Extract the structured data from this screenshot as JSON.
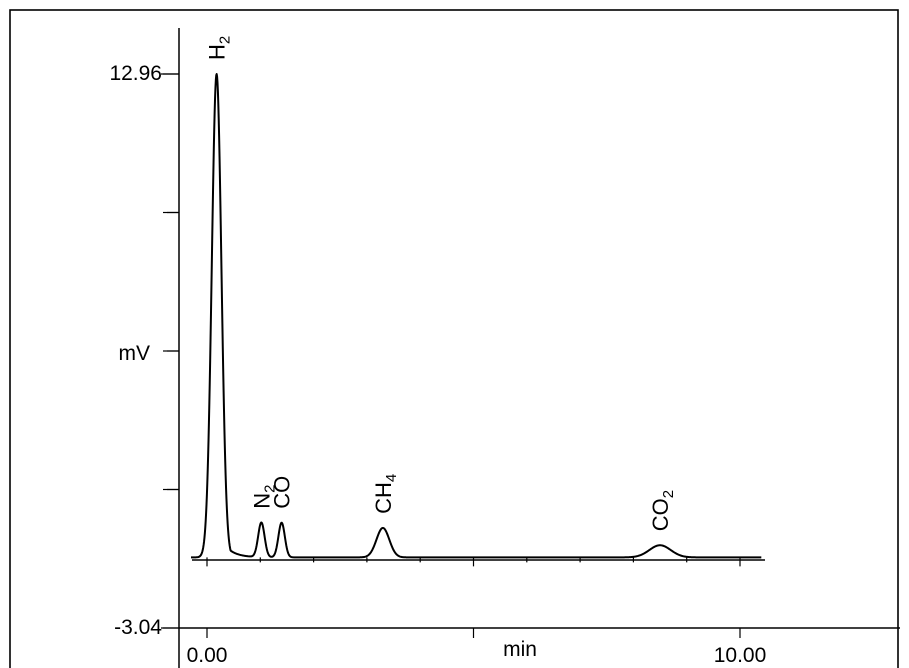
{
  "chart_data": {
    "type": "line",
    "title": "",
    "xlabel": "min",
    "ylabel": "mV",
    "xlim": [
      0,
      10
    ],
    "ylim": [
      -3.04,
      12.96
    ],
    "x_tick_labels": [
      "0.00",
      "10.00"
    ],
    "y_tick_labels": [
      "12.96",
      "-3.04"
    ],
    "baseline": -1.0,
    "grid": false,
    "peaks": [
      {
        "label": "H",
        "sub": "2",
        "x": 0.18,
        "height": 12.96,
        "width": 0.09
      },
      {
        "label": "N",
        "sub": "2",
        "x": 1.02,
        "height": 0.0,
        "width": 0.06
      },
      {
        "label": "CO",
        "sub": "",
        "x": 1.4,
        "height": 0.0,
        "width": 0.06
      },
      {
        "label": "CH",
        "sub": "4",
        "x": 3.3,
        "height": -0.15,
        "width": 0.12
      },
      {
        "label": "CO",
        "sub": "2",
        "x": 8.5,
        "height": -0.65,
        "width": 0.2
      }
    ]
  }
}
